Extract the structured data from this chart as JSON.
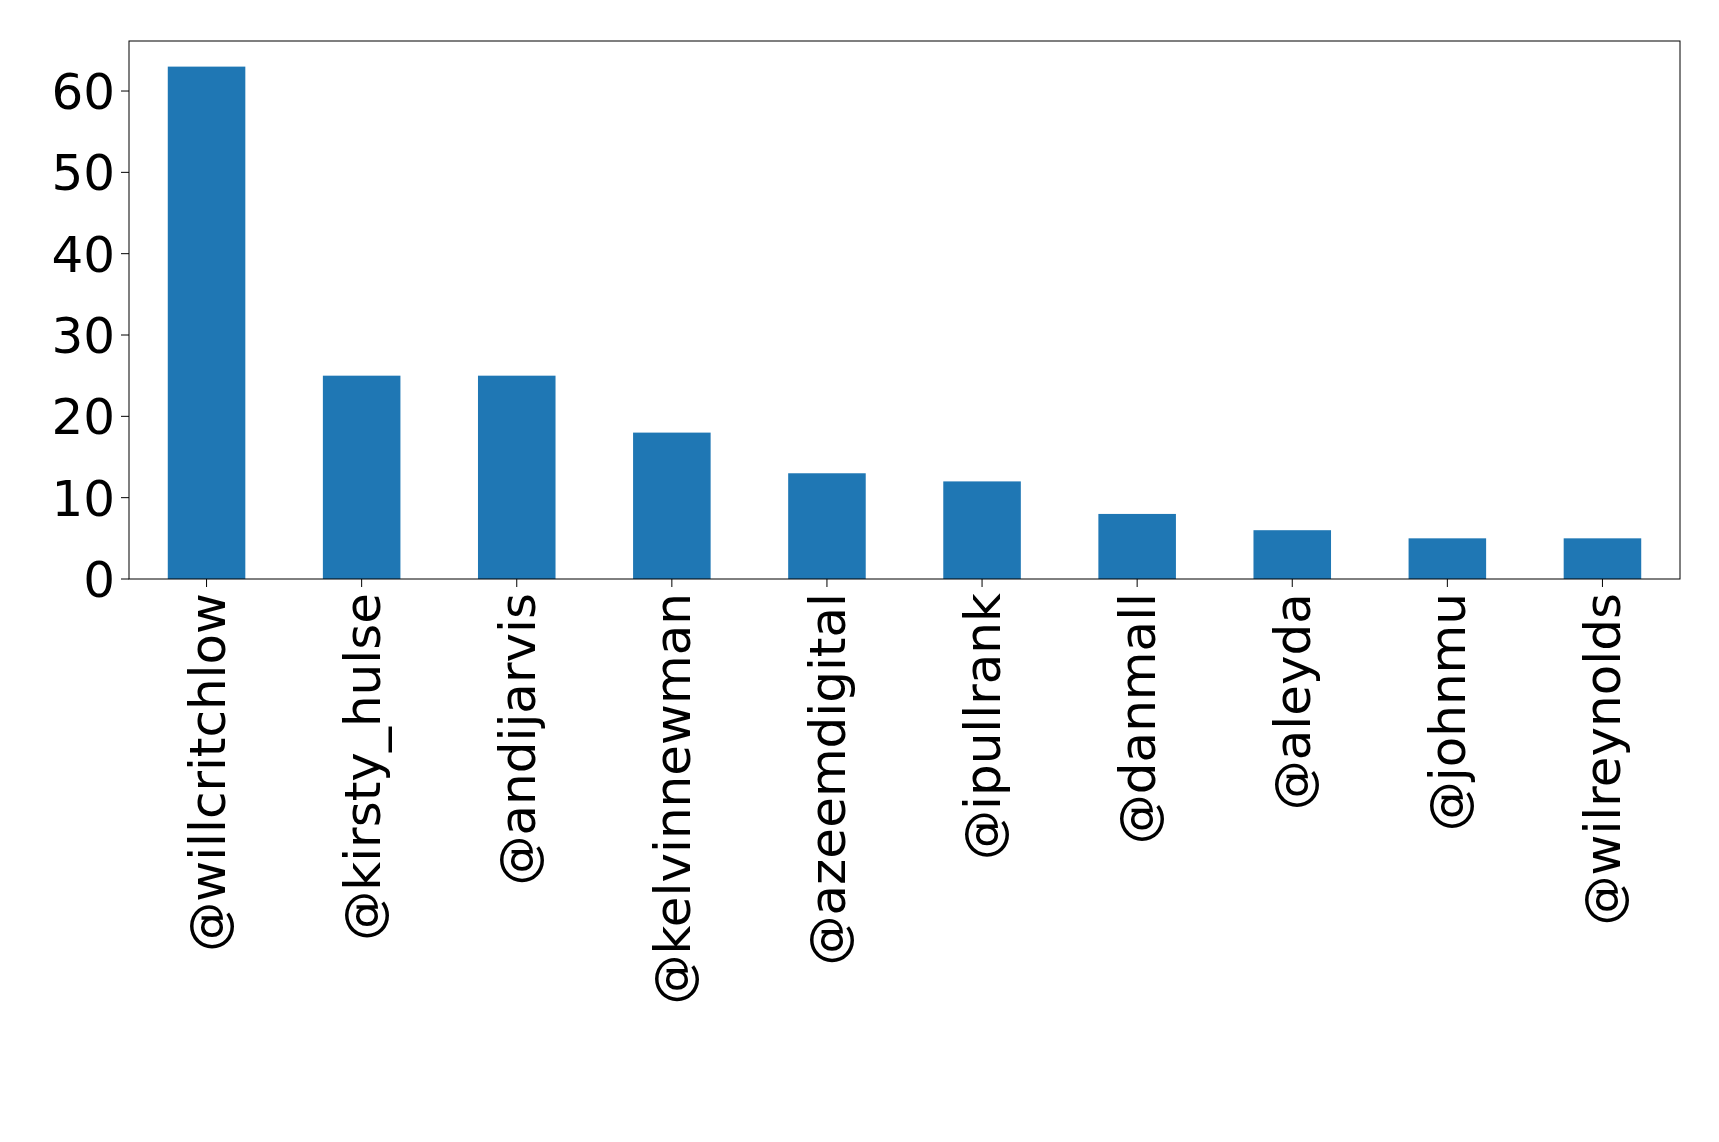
{
  "chart_data": {
    "type": "bar",
    "categories": [
      "@willcritchlow",
      "@kirsty_hulse",
      "@andijarvis",
      "@kelvinnewman",
      "@azeemdigital",
      "@ipullrank",
      "@danmall",
      "@aleyda",
      "@johnmu",
      "@wilreynolds"
    ],
    "values": [
      63,
      25,
      25,
      18,
      13,
      12,
      8,
      6,
      5,
      5
    ],
    "color": "#1f77b4",
    "ylim": [
      0,
      66.15
    ],
    "yticks": [
      0,
      10,
      20,
      30,
      40,
      50,
      60
    ],
    "grid": false
  }
}
